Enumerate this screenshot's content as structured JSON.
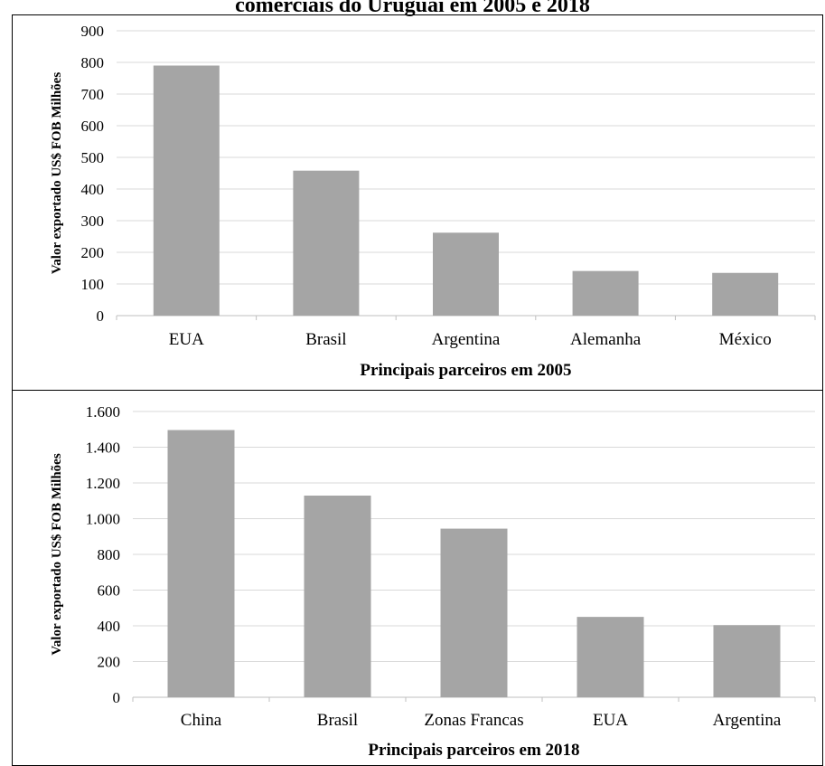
{
  "title": "comerciais do Uruguai em 2005 e 2018",
  "chart_data": [
    {
      "type": "bar",
      "title": "",
      "xlabel": "Principais parceiros em 2005",
      "ylabel": "Valor exportado US$ FOB Milhões",
      "categories": [
        "EUA",
        "Brasil",
        "Argentina",
        "Alemanha",
        "México"
      ],
      "values": [
        790,
        458,
        262,
        141,
        135
      ],
      "ylim": [
        0,
        900
      ],
      "yticks": [
        0,
        100,
        200,
        300,
        400,
        500,
        600,
        700,
        800,
        900
      ],
      "ytick_labels": [
        "0",
        "100",
        "200",
        "300",
        "400",
        "500",
        "600",
        "700",
        "800",
        "900"
      ],
      "grid": true,
      "bar_color": "#a5a5a5"
    },
    {
      "type": "bar",
      "title": "",
      "xlabel": "Principais parceiros em 2018",
      "ylabel": "Valor exportado US$ FOB Milhões",
      "categories": [
        "China",
        "Brasil",
        "Zonas Francas",
        "EUA",
        "Argentina"
      ],
      "values": [
        1496,
        1129,
        944,
        450,
        404
      ],
      "ylim": [
        0,
        1600
      ],
      "yticks": [
        0,
        200,
        400,
        600,
        800,
        1000,
        1200,
        1400,
        1600
      ],
      "ytick_labels": [
        "0",
        "200",
        "400",
        "600",
        "800",
        "1.000",
        "1.200",
        "1.400",
        "1.600"
      ],
      "grid": true,
      "bar_color": "#a5a5a5"
    }
  ]
}
